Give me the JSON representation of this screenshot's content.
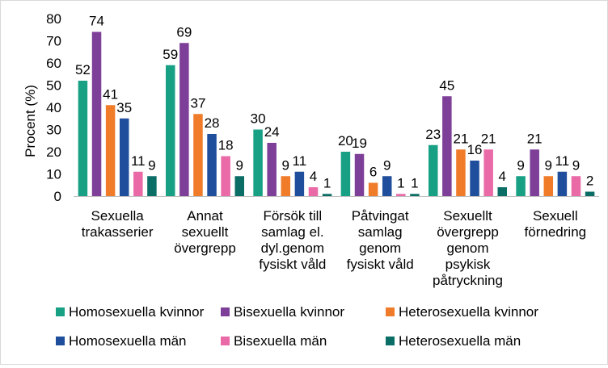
{
  "chart_data": {
    "type": "bar",
    "title": "",
    "xlabel": "",
    "ylabel": "Procent (%)",
    "ylim": [
      0,
      80
    ],
    "yticks": [
      0,
      10,
      20,
      30,
      40,
      50,
      60,
      70,
      80
    ],
    "grid": false,
    "legend_position": "bottom",
    "categories": [
      [
        "Sexuella",
        "trakasserier"
      ],
      [
        "Annat",
        "sexuellt",
        "övergrepp"
      ],
      [
        "Försök till",
        "samlag el.",
        "dyl.genom",
        "fysiskt våld"
      ],
      [
        "Påtvingat",
        "samlag",
        "genom",
        "fysiskt våld"
      ],
      [
        "Sexuellt",
        "övergrepp",
        "genom",
        "psykisk",
        "påtryckning"
      ],
      [
        "Sexuell",
        "förnedring"
      ]
    ],
    "series": [
      {
        "name": "Homosexuella kvinnor",
        "color": "#18a085",
        "values": [
          52,
          59,
          30,
          20,
          23,
          9
        ]
      },
      {
        "name": "Bisexuella kvinnor",
        "color": "#7e3f98",
        "values": [
          74,
          69,
          24,
          19,
          45,
          21
        ]
      },
      {
        "name": "Heterosexuella kvinnor",
        "color": "#f07c2a",
        "values": [
          41,
          37,
          9,
          6,
          21,
          9
        ]
      },
      {
        "name": "Homosexuella män",
        "color": "#1f4e9c",
        "values": [
          35,
          28,
          11,
          9,
          16,
          11
        ]
      },
      {
        "name": "Bisexuella män",
        "color": "#ea6aa7",
        "values": [
          11,
          18,
          4,
          1,
          21,
          9
        ]
      },
      {
        "name": "Heterosexuella män",
        "color": "#0b6e66",
        "values": [
          9,
          9,
          1,
          1,
          4,
          2
        ]
      }
    ]
  }
}
